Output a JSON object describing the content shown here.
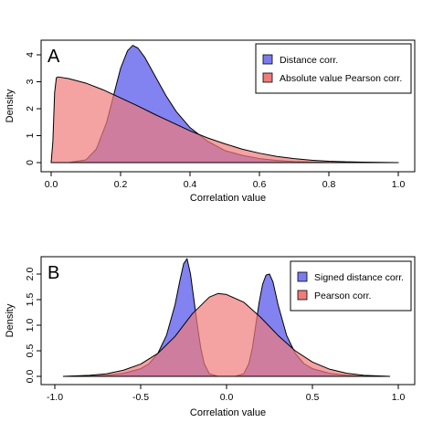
{
  "chart_data": [
    {
      "type": "area",
      "panel_label": "A",
      "xlabel": "Correlation value",
      "ylabel": "Density",
      "xlim": [
        -0.02,
        1.02
      ],
      "ylim": [
        0,
        4.6
      ],
      "x_ticks": [
        0.0,
        0.2,
        0.4,
        0.6,
        0.8,
        1.0
      ],
      "x_tick_labels": [
        "0.0",
        "0.2",
        "0.4",
        "0.6",
        "0.8",
        "1.0"
      ],
      "y_ticks": [
        0,
        1,
        2,
        3,
        4
      ],
      "y_tick_labels": [
        "0",
        "1",
        "2",
        "3",
        "4"
      ],
      "legend_position": "top-right",
      "series": [
        {
          "name": "Distance corr.",
          "color": "#7b7bf0",
          "x": [
            0.0,
            0.05,
            0.1,
            0.13,
            0.16,
            0.18,
            0.2,
            0.22,
            0.235,
            0.25,
            0.27,
            0.3,
            0.33,
            0.36,
            0.4,
            0.45,
            0.5,
            0.55,
            0.6,
            0.65,
            0.7,
            0.75,
            0.8,
            0.9,
            1.0
          ],
          "values": [
            0.0,
            0.0,
            0.1,
            0.5,
            1.5,
            2.5,
            3.5,
            4.15,
            4.35,
            4.25,
            3.9,
            3.2,
            2.5,
            1.9,
            1.3,
            0.8,
            0.45,
            0.27,
            0.15,
            0.08,
            0.04,
            0.02,
            0.01,
            0.0,
            0.0
          ]
        },
        {
          "name": "Absolute value Pearson corr.",
          "color": "#f07b7b",
          "x": [
            0.0,
            0.005,
            0.01,
            0.015,
            0.02,
            0.05,
            0.1,
            0.15,
            0.2,
            0.25,
            0.3,
            0.35,
            0.4,
            0.45,
            0.5,
            0.55,
            0.6,
            0.65,
            0.7,
            0.75,
            0.8,
            0.85,
            0.9,
            0.95,
            1.0
          ],
          "values": [
            0.0,
            0.8,
            2.6,
            3.15,
            3.18,
            3.12,
            2.95,
            2.7,
            2.4,
            2.1,
            1.78,
            1.48,
            1.18,
            0.92,
            0.7,
            0.5,
            0.35,
            0.23,
            0.15,
            0.09,
            0.05,
            0.03,
            0.015,
            0.007,
            0.0
          ]
        }
      ]
    },
    {
      "type": "area",
      "panel_label": "B",
      "xlabel": "Correlation value",
      "ylabel": "Density",
      "xlim": [
        -1.02,
        1.02
      ],
      "ylim": [
        0,
        2.3
      ],
      "x_ticks": [
        -1.0,
        -0.5,
        0.0,
        0.5,
        1.0
      ],
      "x_tick_labels": [
        "-1.0",
        "-0.5",
        "0.0",
        "0.5",
        "1.0"
      ],
      "y_ticks": [
        0,
        0.5,
        1.0,
        1.5,
        2.0
      ],
      "y_tick_labels": [
        "0.0",
        "0.5",
        "1.0",
        "1.5",
        "2.0"
      ],
      "legend_position": "top-right",
      "series": [
        {
          "name": "Signed distance corr.",
          "color": "#7b7bf0",
          "x": [
            -0.95,
            -0.8,
            -0.7,
            -0.6,
            -0.5,
            -0.45,
            -0.4,
            -0.35,
            -0.3,
            -0.27,
            -0.25,
            -0.23,
            -0.21,
            -0.19,
            -0.17,
            -0.15,
            -0.13,
            -0.1,
            -0.05,
            0.0,
            0.05,
            0.1,
            0.13,
            0.15,
            0.17,
            0.19,
            0.21,
            0.23,
            0.25,
            0.27,
            0.3,
            0.35,
            0.4,
            0.45,
            0.5,
            0.6,
            0.7,
            0.8,
            0.95
          ],
          "values": [
            0.0,
            0.005,
            0.02,
            0.06,
            0.15,
            0.25,
            0.45,
            0.8,
            1.4,
            1.9,
            2.2,
            2.3,
            2.0,
            1.5,
            1.0,
            0.55,
            0.25,
            0.05,
            0.0,
            0.0,
            0.0,
            0.05,
            0.25,
            0.55,
            1.0,
            1.45,
            1.8,
            1.98,
            2.0,
            1.85,
            1.4,
            0.8,
            0.45,
            0.25,
            0.15,
            0.06,
            0.02,
            0.005,
            0.0
          ]
        },
        {
          "name": "Pearson corr.",
          "color": "#f07b7b",
          "x": [
            -0.95,
            -0.8,
            -0.7,
            -0.6,
            -0.5,
            -0.4,
            -0.3,
            -0.2,
            -0.1,
            -0.05,
            0.0,
            0.1,
            0.2,
            0.3,
            0.4,
            0.5,
            0.6,
            0.7,
            0.8,
            0.95
          ],
          "values": [
            0.0,
            0.02,
            0.05,
            0.12,
            0.24,
            0.45,
            0.78,
            1.22,
            1.55,
            1.62,
            1.6,
            1.45,
            1.15,
            0.8,
            0.5,
            0.28,
            0.14,
            0.06,
            0.02,
            0.0
          ]
        }
      ]
    }
  ]
}
